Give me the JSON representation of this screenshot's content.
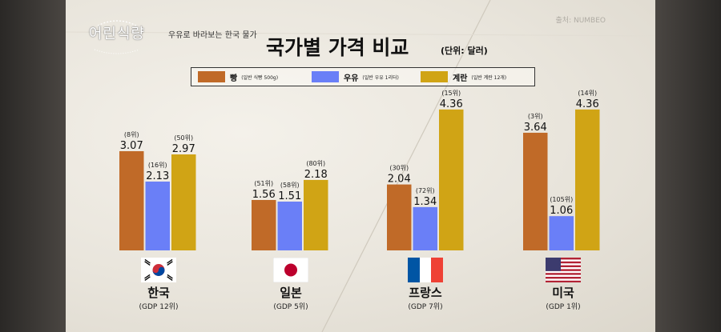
{
  "header": {
    "logo_text": "어린식량",
    "subtitle": "우유로 바라보는 한국 물가",
    "title": "국가별 가격 비교",
    "unit": "(단위: 달러)",
    "source": "출처: NUMBEO"
  },
  "legend": [
    {
      "name": "빵",
      "note": "(일반 식빵 500g)",
      "color": "#c06a28"
    },
    {
      "name": "우유",
      "note": "(일반 우유 1리터)",
      "color": "#6a7ff7"
    },
    {
      "name": "계란",
      "note": "(일반 계란 12개)",
      "color": "#d0a415"
    }
  ],
  "countries": [
    {
      "name": "한국",
      "gdp": "(GDP 12위)",
      "flag": "korea-flag-icon"
    },
    {
      "name": "일본",
      "gdp": "(GDP 5위)",
      "flag": "japan-flag-icon"
    },
    {
      "name": "프랑스",
      "gdp": "(GDP 7위)",
      "flag": "france-flag-icon"
    },
    {
      "name": "미국",
      "gdp": "(GDP 1위)",
      "flag": "usa-flag-icon"
    }
  ],
  "chart_data": {
    "type": "bar",
    "title": "국가별 가격 비교",
    "unit": "(단위: 달러)",
    "categories": [
      "한국",
      "일본",
      "프랑스",
      "미국"
    ],
    "series": [
      {
        "name": "빵",
        "values": [
          3.07,
          1.56,
          2.04,
          3.64
        ],
        "ranks": [
          "(8위)",
          "(51위)",
          "(30위)",
          "(3위)"
        ],
        "color": "#c06a28"
      },
      {
        "name": "우유",
        "values": [
          2.13,
          1.51,
          1.34,
          1.06
        ],
        "ranks": [
          "(16위)",
          "(58위)",
          "(72위)",
          "(105위)"
        ],
        "color": "#6a7ff7"
      },
      {
        "name": "계란",
        "values": [
          2.97,
          2.18,
          4.36,
          4.36
        ],
        "ranks": [
          "(50위)",
          "(80위)",
          "(15위)",
          "(14위)"
        ],
        "color": "#d0a415"
      }
    ],
    "value_labels": [
      [
        "3.07",
        "1.56",
        "2.04",
        "3.64"
      ],
      [
        "2.13",
        "1.51",
        "1.34",
        "1.06"
      ],
      [
        "2.97",
        "2.18",
        "4.36",
        "4.36"
      ]
    ]
  }
}
